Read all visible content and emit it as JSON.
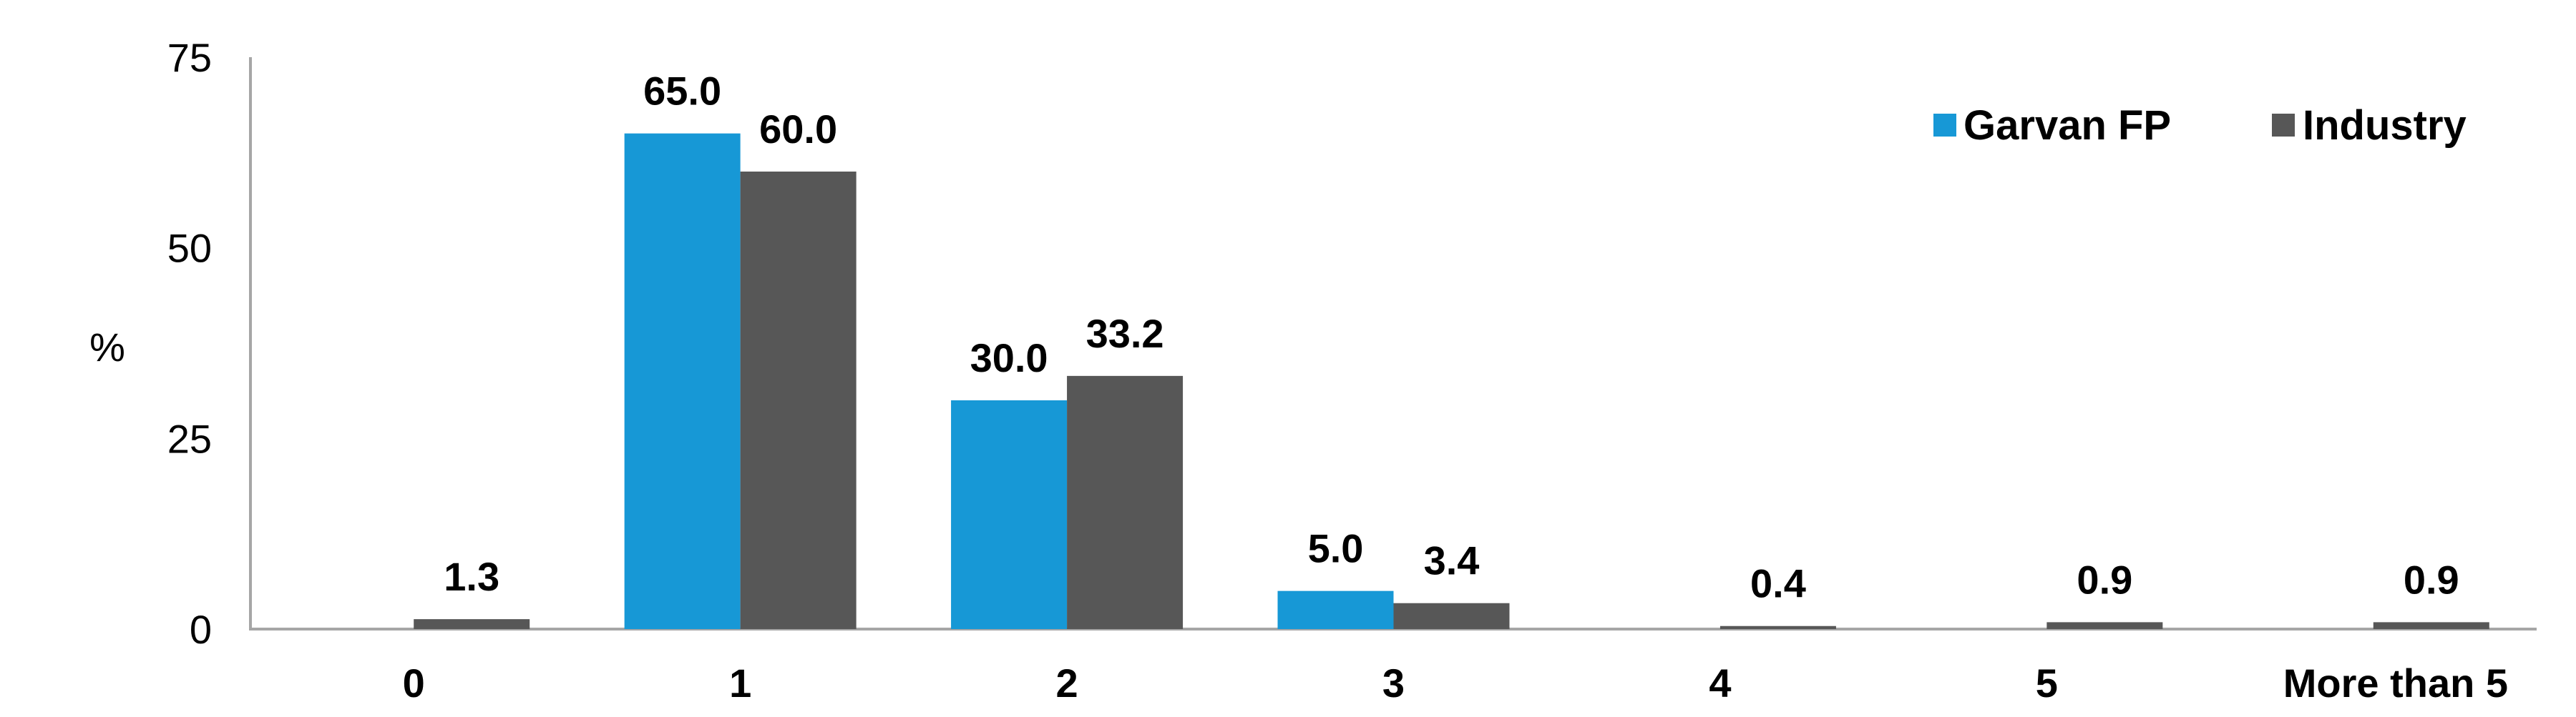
{
  "chart_data": {
    "type": "bar",
    "categories": [
      "0",
      "1",
      "2",
      "3",
      "4",
      "5",
      "More than 5"
    ],
    "series": [
      {
        "name": "Garvan FP",
        "color": "#1798d6",
        "values": [
          null,
          65.0,
          30.0,
          5.0,
          null,
          null,
          null
        ],
        "labels": [
          "",
          "65.0",
          "30.0",
          "5.0",
          "",
          "",
          ""
        ]
      },
      {
        "name": "Industry",
        "color": "#575757",
        "values": [
          1.3,
          60.0,
          33.2,
          3.4,
          0.4,
          0.9,
          0.9
        ],
        "labels": [
          "1.3",
          "60.0",
          "33.2",
          "3.4",
          "0.4",
          "0.9",
          "0.9"
        ]
      }
    ],
    "ylabel": "%",
    "xlabel": "",
    "ylim": [
      0,
      75
    ],
    "yticks": [
      "0",
      "25",
      "50",
      "75"
    ],
    "grid": false,
    "legend_position": "top-right",
    "axis_color": "#a6a6a6"
  }
}
